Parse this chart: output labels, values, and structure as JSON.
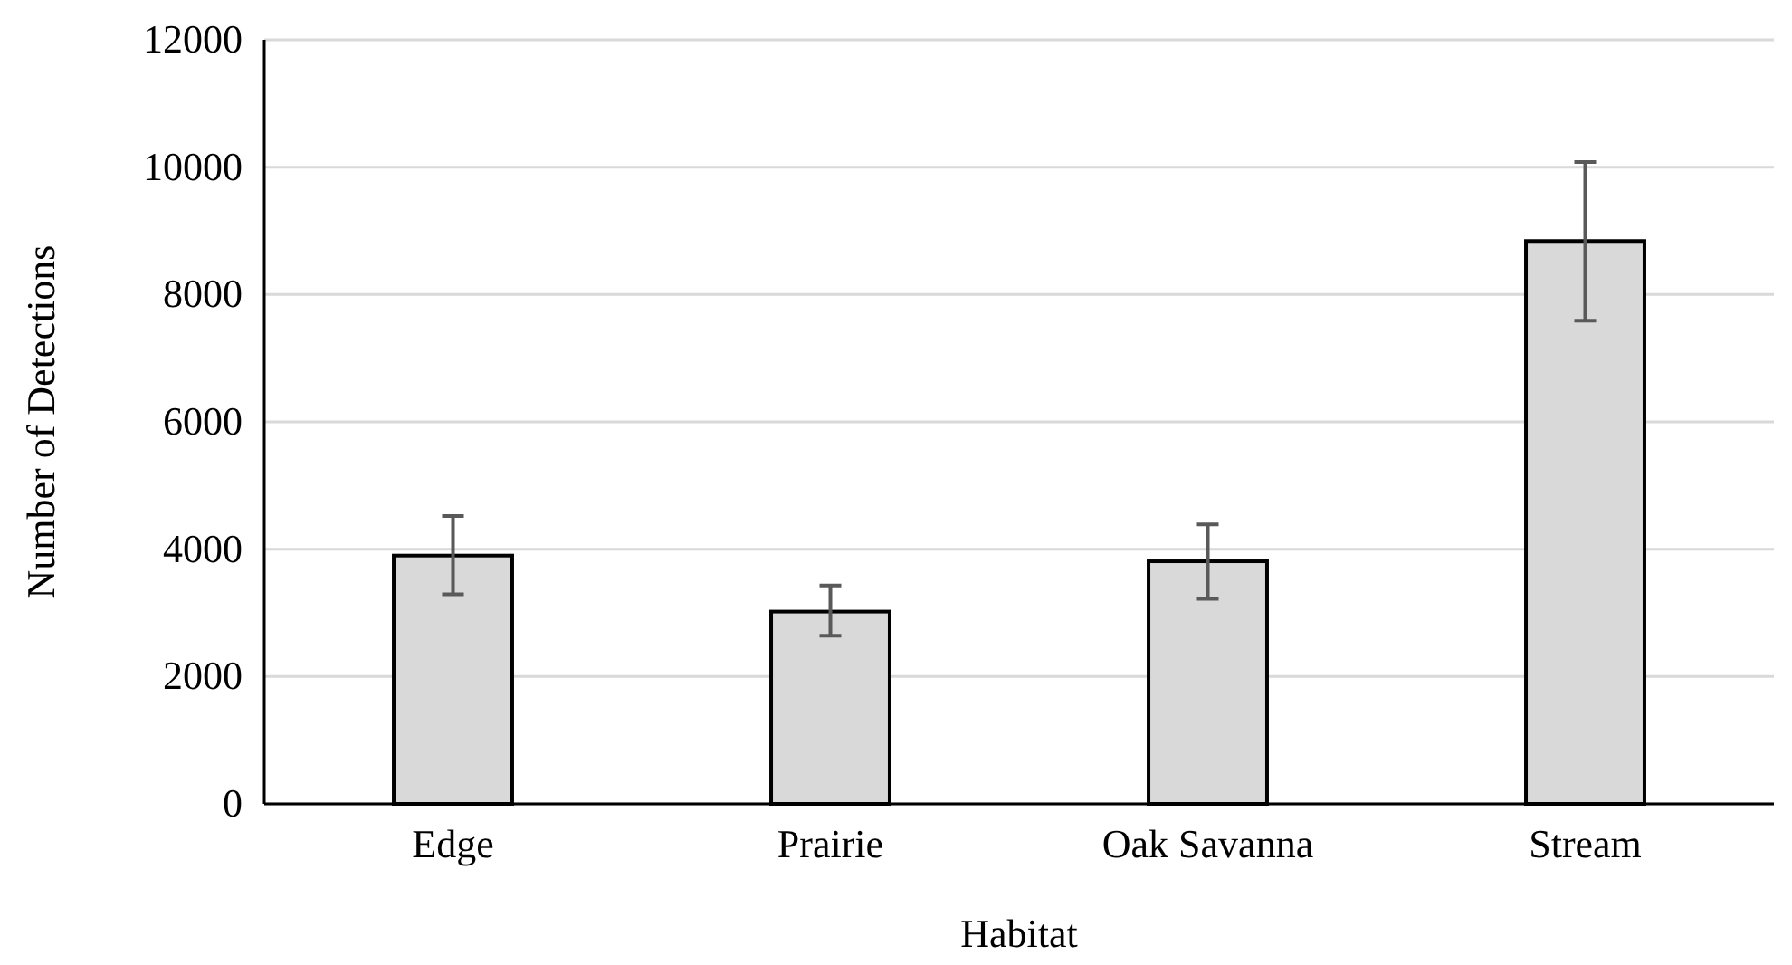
{
  "chart_data": {
    "type": "bar",
    "xlabel": "Habitat",
    "ylabel": "Number of Detections",
    "categories": [
      "Edge",
      "Prairie",
      "Oak Savanna",
      "Stream"
    ],
    "values": [
      3900,
      3020,
      3810,
      8840
    ],
    "errors": [
      [
        3290,
        4520
      ],
      [
        2640,
        3430
      ],
      [
        3220,
        4390
      ],
      [
        7590,
        10080
      ]
    ],
    "color": "#d9d9d9",
    "ylim": [
      0,
      12000
    ],
    "yticks": [
      0,
      2000,
      4000,
      6000,
      8000,
      10000,
      12000
    ],
    "grid": "y"
  }
}
